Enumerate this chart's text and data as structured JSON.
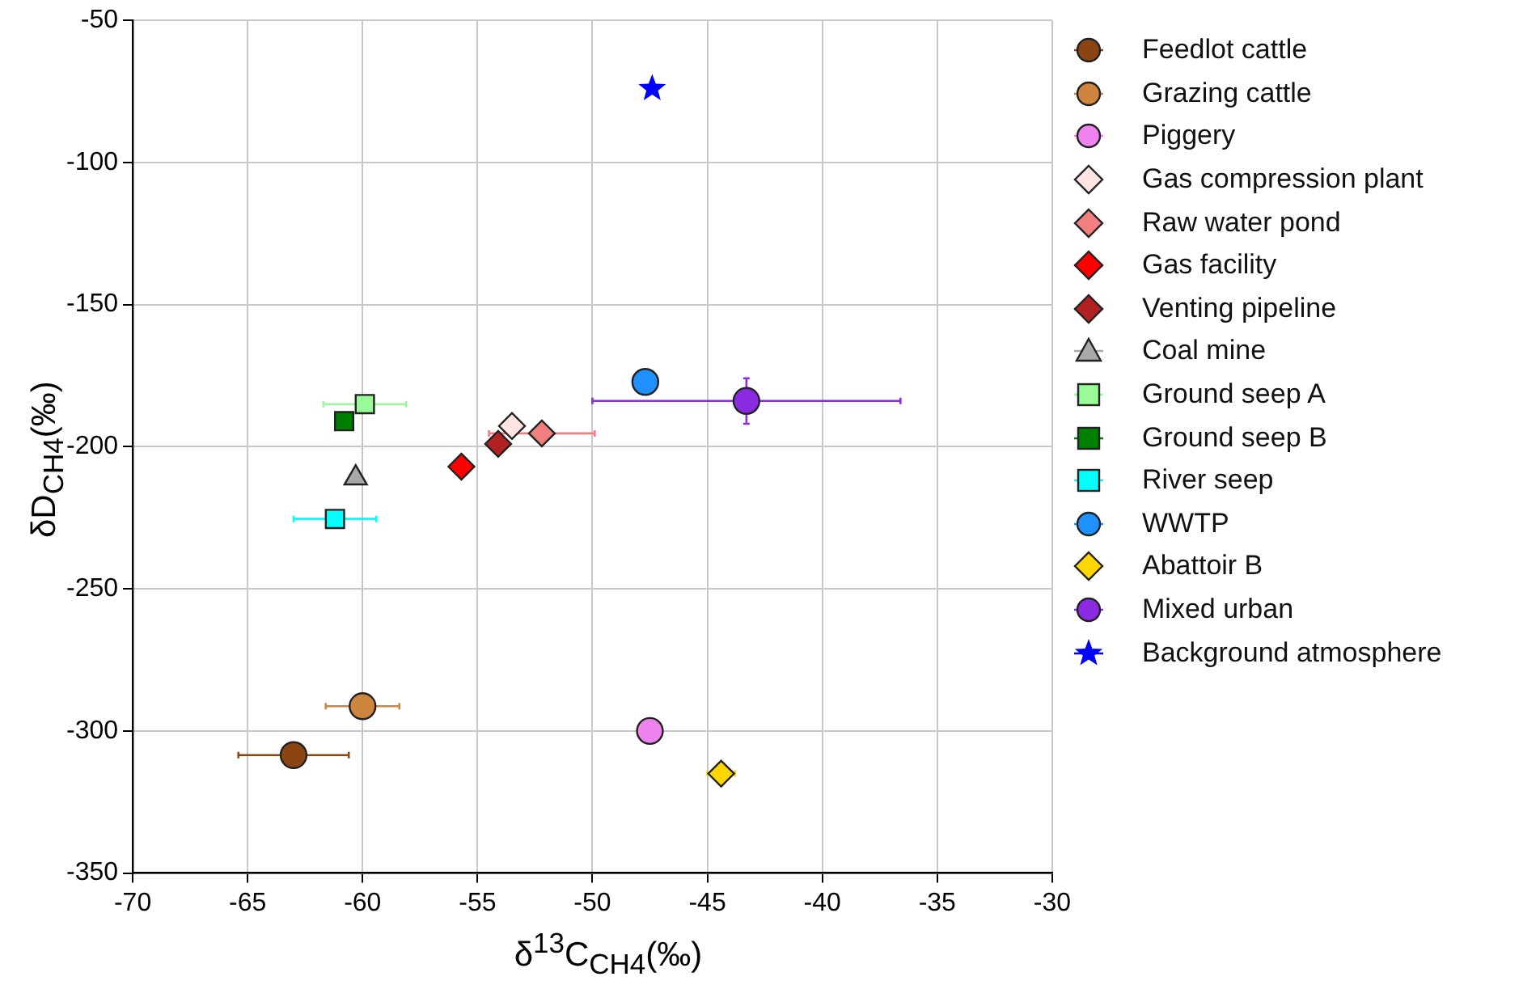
{
  "chart_data": {
    "type": "scatter",
    "xlabel": "δ$^{13}$C$_{CH4}$(‰)",
    "ylabel": "δD$_{CH4}$(‰)",
    "xlim": [
      -70,
      -30
    ],
    "xticks": [
      -70,
      -65,
      -60,
      -55,
      -50,
      -45,
      -40,
      -35,
      -30
    ],
    "ylim": [
      -350,
      -50
    ],
    "yticks": [
      -350,
      -300,
      -250,
      -200,
      -150,
      -100,
      -50
    ],
    "grid": true,
    "legend": "right",
    "marker": "circle",
    "series": [
      {
        "name": "Feedlot cattle",
        "color": "#8b4513",
        "marker": "circle",
        "x": [
          -63.0
        ],
        "values": [
          -308.5
        ],
        "xerrors": [
          2.4
        ]
      },
      {
        "name": "Grazing cattle",
        "color": "#cd853f",
        "marker": "circle",
        "x": [
          -60.0
        ],
        "values": [
          -291.3
        ],
        "xerrors": [
          1.6
        ]
      },
      {
        "name": "Piggery",
        "color": "#ee82ee",
        "marker": "circle",
        "x": [
          -47.5
        ],
        "values": [
          -300
        ]
      },
      {
        "name": "Gas compression plant",
        "color": "#ffe4e1",
        "marker": "diamond",
        "x": [
          -53.5
        ],
        "values": [
          -192.7
        ]
      },
      {
        "name": "Raw water pond",
        "color": "#f08080",
        "marker": "diamond",
        "x": [
          -52.2
        ],
        "values": [
          -195.3
        ],
        "xerrors": [
          2.3
        ]
      },
      {
        "name": "Gas facility",
        "color": "#ff0000",
        "marker": "diamond",
        "x": [
          -55.7
        ],
        "values": [
          -207
        ]
      },
      {
        "name": "Venting pipeline",
        "color": "#b22222",
        "marker": "diamond",
        "x": [
          -54.1
        ],
        "values": [
          -199
        ]
      },
      {
        "name": "Coal mine",
        "color": "#a9a9a9",
        "marker": "triangle",
        "x": [
          -60.3
        ],
        "values": [
          -211
        ]
      },
      {
        "name": "Ground seep A",
        "color": "#98fb98",
        "marker": "square",
        "x": [
          -59.9
        ],
        "values": [
          -185
        ],
        "xerrors": [
          1.8
        ]
      },
      {
        "name": "Ground seep B",
        "color": "#008000",
        "marker": "square",
        "x": [
          -60.8
        ],
        "values": [
          -191
        ]
      },
      {
        "name": "River seep",
        "color": "#00ffff",
        "marker": "square",
        "x": [
          -61.2
        ],
        "values": [
          -225.4
        ],
        "xerrors": [
          1.8
        ]
      },
      {
        "name": "WWTP",
        "color": "#1e90ff",
        "x": [
          -47.7
        ],
        "values": [
          -177.2
        ]
      },
      {
        "name": "Abattoir B",
        "color": "#ffd700",
        "marker": "diamond",
        "x": [
          -44.4
        ],
        "values": [
          -315
        ],
        "xerrors": [
          0.6
        ]
      },
      {
        "name": "Mixed urban",
        "color": "#8a2be2",
        "x": [
          -43.3
        ],
        "values": [
          -183.9
        ],
        "xerrors": [
          6.7
        ],
        "errors": [
          8
        ]
      },
      {
        "name": "Background atmosphere",
        "color": "#0000ff",
        "marker": "star",
        "x": [
          -47.4
        ],
        "values": [
          -74
        ]
      }
    ]
  }
}
